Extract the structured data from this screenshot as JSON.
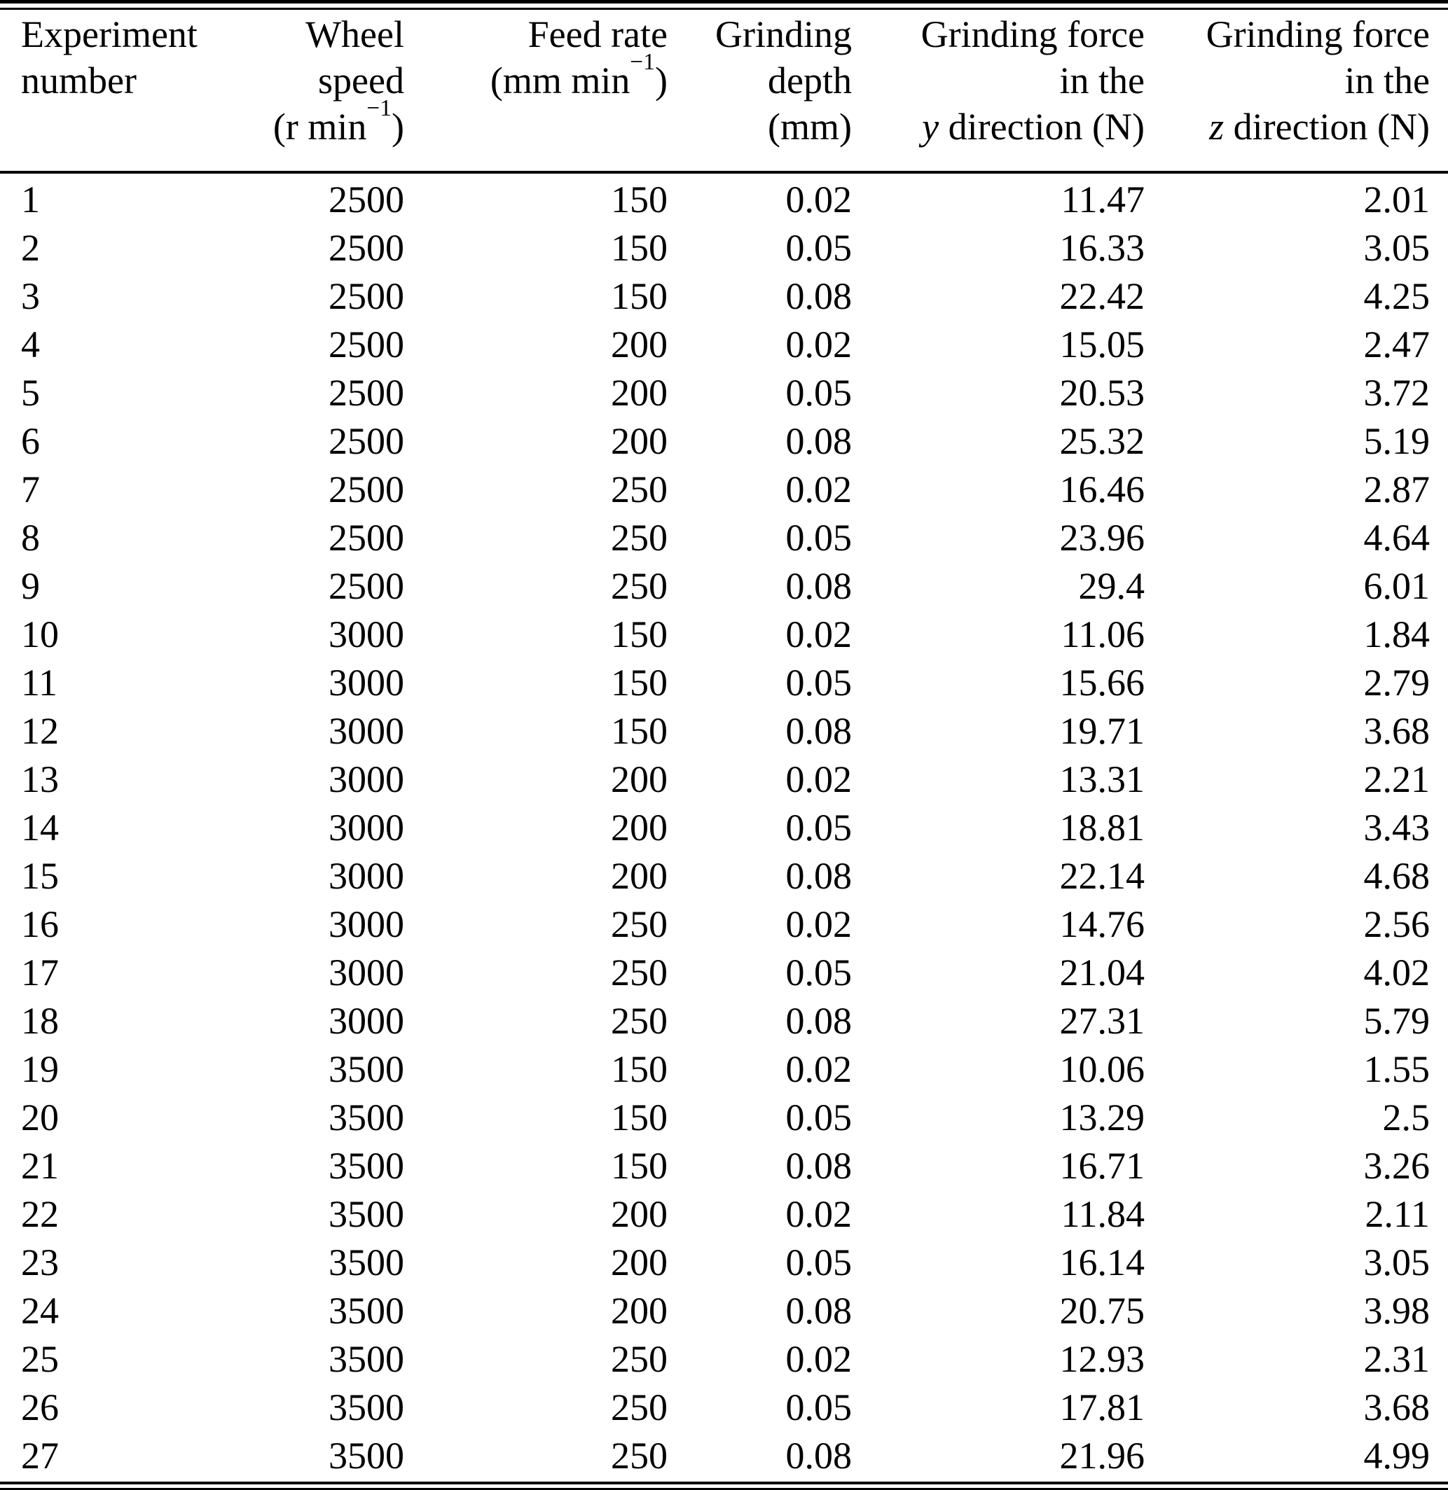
{
  "columns": [
    "Experiment number",
    "Wheel speed (r min−1)",
    "Feed rate (mm min−1)",
    "Grinding depth (mm)",
    "Grinding force in the y direction (N)",
    "Grinding force in the z direction (N)"
  ],
  "header": {
    "col1": {
      "line1": "Experiment",
      "line2": "number"
    },
    "col2": {
      "line1": "Wheel",
      "line2": "speed",
      "unit_pre": "(r min",
      "unit_sup": "−1",
      "unit_post": ")"
    },
    "col3": {
      "line1": "Feed rate",
      "unit_pre": "(mm min",
      "unit_sup": "−1",
      "unit_post": ")"
    },
    "col4": {
      "line1": "Grinding",
      "line2": "depth",
      "line3": "(mm)"
    },
    "col5": {
      "line1": "Grinding force",
      "line2": "in the",
      "var": "y",
      "line3_rest": " direction (N)"
    },
    "col6": {
      "line1": "Grinding force",
      "line2": "in the",
      "var": "z",
      "line3_rest": " direction (N)"
    }
  },
  "rows": [
    [
      "1",
      "2500",
      "150",
      "0.02",
      "11.47",
      "2.01"
    ],
    [
      "2",
      "2500",
      "150",
      "0.05",
      "16.33",
      "3.05"
    ],
    [
      "3",
      "2500",
      "150",
      "0.08",
      "22.42",
      "4.25"
    ],
    [
      "4",
      "2500",
      "200",
      "0.02",
      "15.05",
      "2.47"
    ],
    [
      "5",
      "2500",
      "200",
      "0.05",
      "20.53",
      "3.72"
    ],
    [
      "6",
      "2500",
      "200",
      "0.08",
      "25.32",
      "5.19"
    ],
    [
      "7",
      "2500",
      "250",
      "0.02",
      "16.46",
      "2.87"
    ],
    [
      "8",
      "2500",
      "250",
      "0.05",
      "23.96",
      "4.64"
    ],
    [
      "9",
      "2500",
      "250",
      "0.08",
      "29.4",
      "6.01"
    ],
    [
      "10",
      "3000",
      "150",
      "0.02",
      "11.06",
      "1.84"
    ],
    [
      "11",
      "3000",
      "150",
      "0.05",
      "15.66",
      "2.79"
    ],
    [
      "12",
      "3000",
      "150",
      "0.08",
      "19.71",
      "3.68"
    ],
    [
      "13",
      "3000",
      "200",
      "0.02",
      "13.31",
      "2.21"
    ],
    [
      "14",
      "3000",
      "200",
      "0.05",
      "18.81",
      "3.43"
    ],
    [
      "15",
      "3000",
      "200",
      "0.08",
      "22.14",
      "4.68"
    ],
    [
      "16",
      "3000",
      "250",
      "0.02",
      "14.76",
      "2.56"
    ],
    [
      "17",
      "3000",
      "250",
      "0.05",
      "21.04",
      "4.02"
    ],
    [
      "18",
      "3000",
      "250",
      "0.08",
      "27.31",
      "5.79"
    ],
    [
      "19",
      "3500",
      "150",
      "0.02",
      "10.06",
      "1.55"
    ],
    [
      "20",
      "3500",
      "150",
      "0.05",
      "13.29",
      "2.5"
    ],
    [
      "21",
      "3500",
      "150",
      "0.08",
      "16.71",
      "3.26"
    ],
    [
      "22",
      "3500",
      "200",
      "0.02",
      "11.84",
      "2.11"
    ],
    [
      "23",
      "3500",
      "200",
      "0.05",
      "16.14",
      "3.05"
    ],
    [
      "24",
      "3500",
      "200",
      "0.08",
      "20.75",
      "3.98"
    ],
    [
      "25",
      "3500",
      "250",
      "0.02",
      "12.93",
      "2.31"
    ],
    [
      "26",
      "3500",
      "250",
      "0.05",
      "17.81",
      "3.68"
    ],
    [
      "27",
      "3500",
      "250",
      "0.08",
      "21.96",
      "4.99"
    ]
  ]
}
